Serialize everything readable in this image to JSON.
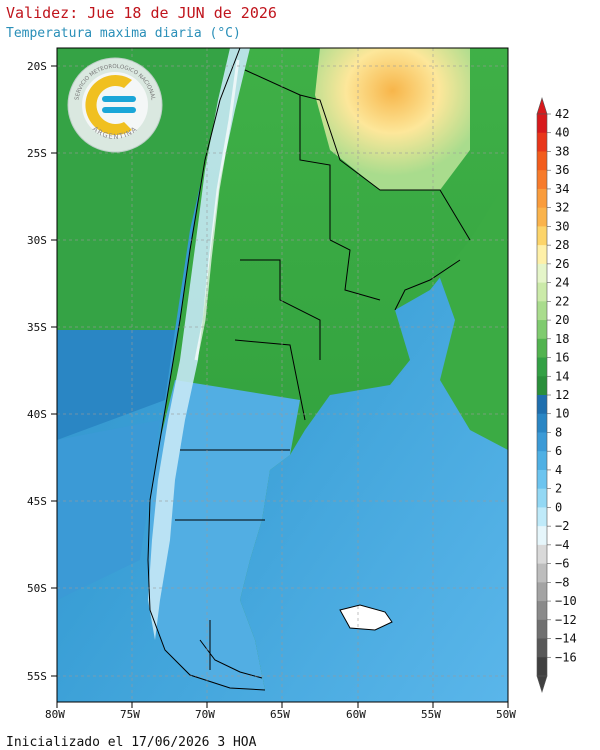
{
  "header": {
    "title": "Validez: Jue 18 de JUN de 2026",
    "subtitle": "Temperatura maxima diaria (°C)"
  },
  "footer": {
    "init": "Inicializado el 17/06/2026 3 HOA"
  },
  "map": {
    "lat_labels": [
      "20S",
      "25S",
      "30S",
      "35S",
      "40S",
      "45S",
      "50S",
      "55S"
    ],
    "lon_labels": [
      "80W",
      "75W",
      "70W",
      "65W",
      "60W",
      "55W",
      "50W"
    ],
    "region": "Argentina y paises limitrofes",
    "colors": {
      "ocean_cold": "#2f97cc",
      "ocean_mid": "#52b0e6",
      "land_warm": "#2fa63a",
      "land_hot": "#f7b54a"
    }
  },
  "logo": {
    "ring_top_text": "SERVICIO METEOROLOGICO NACIONAL",
    "ring_bottom_text": "ARGENTINA",
    "colors": {
      "sun": "#f0c020",
      "cyan": "#1aa6d8",
      "ring": "#dfe8e8"
    }
  },
  "colorbar": {
    "labels": [
      "42",
      "40",
      "38",
      "36",
      "34",
      "32",
      "30",
      "28",
      "26",
      "24",
      "22",
      "20",
      "18",
      "16",
      "14",
      "12",
      "10",
      "8",
      "6",
      "4",
      "2",
      "0",
      "−2",
      "−4",
      "−6",
      "−8",
      "−10",
      "−12",
      "−14",
      "−16"
    ],
    "colors": [
      "#d7191c",
      "#e8361a",
      "#f25c1c",
      "#f77b2b",
      "#f99c3c",
      "#fab34c",
      "#fcd46a",
      "#fef0a8",
      "#e5f5c9",
      "#cbeaa9",
      "#a9dc8d",
      "#7fcb6f",
      "#52b34f",
      "#33a044",
      "#2a8f3b",
      "#1f6fae",
      "#2a86c4",
      "#3b9ad6",
      "#4fb0e4",
      "#6cc4ef",
      "#93d8f4",
      "#bfeaf9",
      "#e6f6fb",
      "#d9d9d9",
      "#bdbdbd",
      "#a3a3a3",
      "#8a8a8a",
      "#707070",
      "#585858",
      "#404040"
    ]
  }
}
